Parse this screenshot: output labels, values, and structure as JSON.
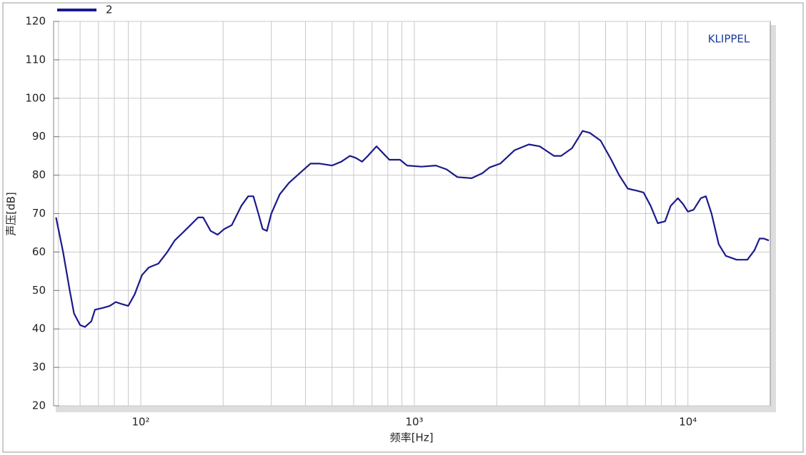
{
  "chart_data": {
    "type": "line",
    "xlabel": "频率[Hz]",
    "ylabel": "声压[dB]",
    "annotation": "KLIPPEL",
    "xscale": "log",
    "grid": true,
    "legend": "top-left",
    "xlim": [
      48,
      20000
    ],
    "ylim": [
      20,
      120
    ],
    "xticks": [
      {
        "value": 100,
        "label": "10²"
      },
      {
        "value": 1000,
        "label": "10³"
      },
      {
        "value": 10000,
        "label": "10⁴"
      }
    ],
    "yticks": [
      20,
      30,
      40,
      50,
      60,
      70,
      80,
      90,
      100,
      110,
      120
    ],
    "x": [
      49,
      52,
      55,
      57,
      60,
      62.5,
      66,
      68,
      73,
      77,
      81,
      85,
      90,
      95,
      101,
      107,
      116,
      125,
      133,
      147,
      162,
      169,
      180,
      191,
      202,
      215,
      233,
      247,
      258,
      269,
      279,
      289,
      300,
      322,
      348,
      381,
      417,
      451,
      500,
      541,
      581,
      610,
      644,
      676,
      727,
      762,
      810,
      886,
      941,
      1062,
      1198,
      1312,
      1436,
      1619,
      1773,
      1883,
      2061,
      2325,
      2623,
      2872,
      3239,
      3440,
      3766,
      4123,
      4379,
      4793,
      5248,
      5607,
      6027,
      6480,
      6880,
      7310,
      7760,
      8250,
      8650,
      9190,
      9590,
      10000,
      10490,
      11150,
      11630,
      12200,
      12960,
      13760,
      15070,
      16500,
      17520,
      18270,
      18940,
      19760
    ],
    "series": [
      {
        "name": "2",
        "color": "#1a1a8c",
        "values": [
          69,
          60,
          50,
          44,
          41,
          40.5,
          42,
          45,
          45.5,
          46,
          47,
          46.5,
          46,
          49,
          54,
          56,
          57,
          60,
          63,
          66,
          69,
          69,
          65.5,
          64.5,
          66,
          67,
          72,
          74.5,
          74.5,
          70,
          66,
          65.5,
          70,
          75,
          78,
          80.5,
          83,
          83,
          82.5,
          83.5,
          85,
          84.5,
          83.5,
          85,
          87.5,
          86,
          84,
          84,
          82.5,
          82.2,
          82.5,
          81.5,
          79.5,
          79.2,
          80.5,
          82,
          83,
          86.5,
          88,
          87.5,
          85,
          85,
          87,
          91.5,
          91,
          89,
          84,
          80,
          76.5,
          76,
          75.5,
          72,
          67.5,
          68,
          72,
          74,
          72.5,
          70.5,
          71,
          74,
          74.5,
          70,
          62,
          59,
          58,
          58,
          60.5,
          63.5,
          63.5,
          63
        ]
      }
    ]
  }
}
